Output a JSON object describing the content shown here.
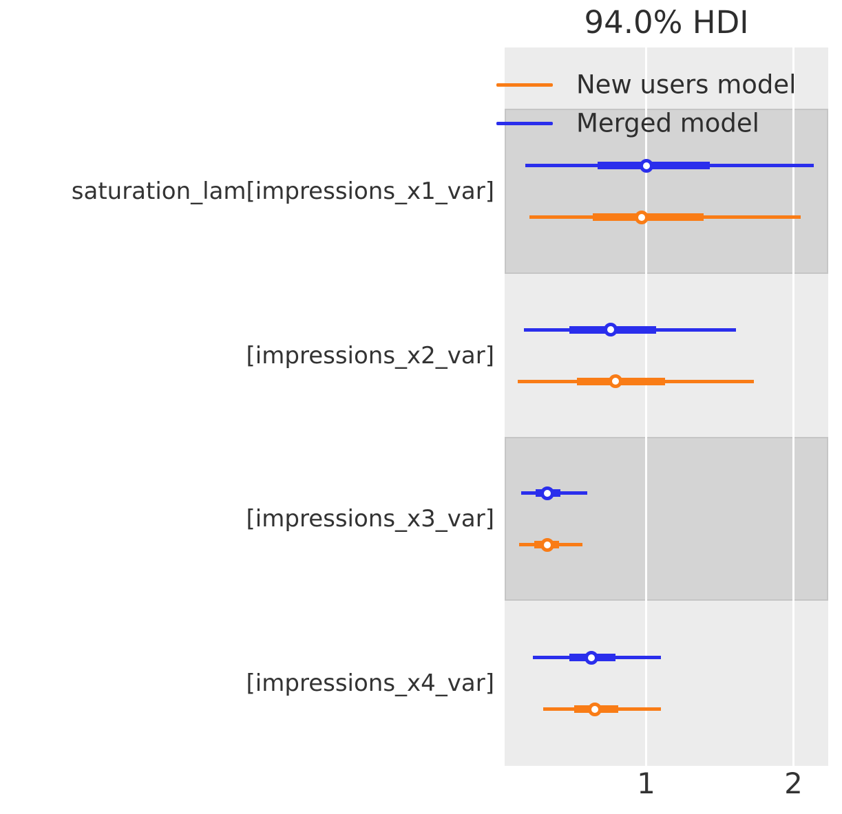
{
  "title": "94.0% HDI",
  "legend": [
    {
      "label": "New users model",
      "color": "#f97c16"
    },
    {
      "label": "Merged model",
      "color": "#2a2eec"
    }
  ],
  "x_axis": {
    "tick_labels": [
      "1",
      "2"
    ],
    "tick_values": [
      1,
      2
    ]
  },
  "chart_data": {
    "type": "forest",
    "title": "94.0% HDI",
    "hdi_prob": "94.0%",
    "orientation": "horizontal",
    "xlim": [
      0.04,
      2.24
    ],
    "xticks": [
      1,
      2
    ],
    "grid": "white vertical gridlines at x ticks",
    "legend_position": "upper right, inside plot",
    "band_colors": {
      "light": "#ececec",
      "dark": "#d4d4d4"
    },
    "series_order_top_to_bottom": [
      "Merged model",
      "New users model"
    ],
    "rows": [
      {
        "label": "saturation_lam[impressions_x1_var]",
        "shaded": true,
        "estimates": [
          {
            "model": "Merged model",
            "color": "#2a2eec",
            "hdi_94": [
              0.18,
              2.14
            ],
            "quartile_range": [
              0.67,
              1.43
            ],
            "point": 1.0
          },
          {
            "model": "New users model",
            "color": "#f97c16",
            "hdi_94": [
              0.21,
              2.05
            ],
            "quartile_range": [
              0.64,
              1.39
            ],
            "point": 0.97
          }
        ]
      },
      {
        "label": "[impressions_x2_var]",
        "shaded": false,
        "estimates": [
          {
            "model": "Merged model",
            "color": "#2a2eec",
            "hdi_94": [
              0.17,
              1.61
            ],
            "quartile_range": [
              0.48,
              1.07
            ],
            "point": 0.76
          },
          {
            "model": "New users model",
            "color": "#f97c16",
            "hdi_94": [
              0.13,
              1.73
            ],
            "quartile_range": [
              0.53,
              1.13
            ],
            "point": 0.79
          }
        ]
      },
      {
        "label": "[impressions_x3_var]",
        "shaded": true,
        "estimates": [
          {
            "model": "Merged model",
            "color": "#2a2eec",
            "hdi_94": [
              0.15,
              0.6
            ],
            "quartile_range": [
              0.25,
              0.42
            ],
            "point": 0.33
          },
          {
            "model": "New users model",
            "color": "#f97c16",
            "hdi_94": [
              0.14,
              0.57
            ],
            "quartile_range": [
              0.24,
              0.41
            ],
            "point": 0.33
          }
        ]
      },
      {
        "label": "[impressions_x4_var]",
        "shaded": false,
        "estimates": [
          {
            "model": "Merged model",
            "color": "#2a2eec",
            "hdi_94": [
              0.23,
              1.1
            ],
            "quartile_range": [
              0.48,
              0.79
            ],
            "point": 0.63
          },
          {
            "model": "New users model",
            "color": "#f97c16",
            "hdi_94": [
              0.3,
              1.1
            ],
            "quartile_range": [
              0.51,
              0.81
            ],
            "point": 0.65
          }
        ]
      }
    ]
  }
}
